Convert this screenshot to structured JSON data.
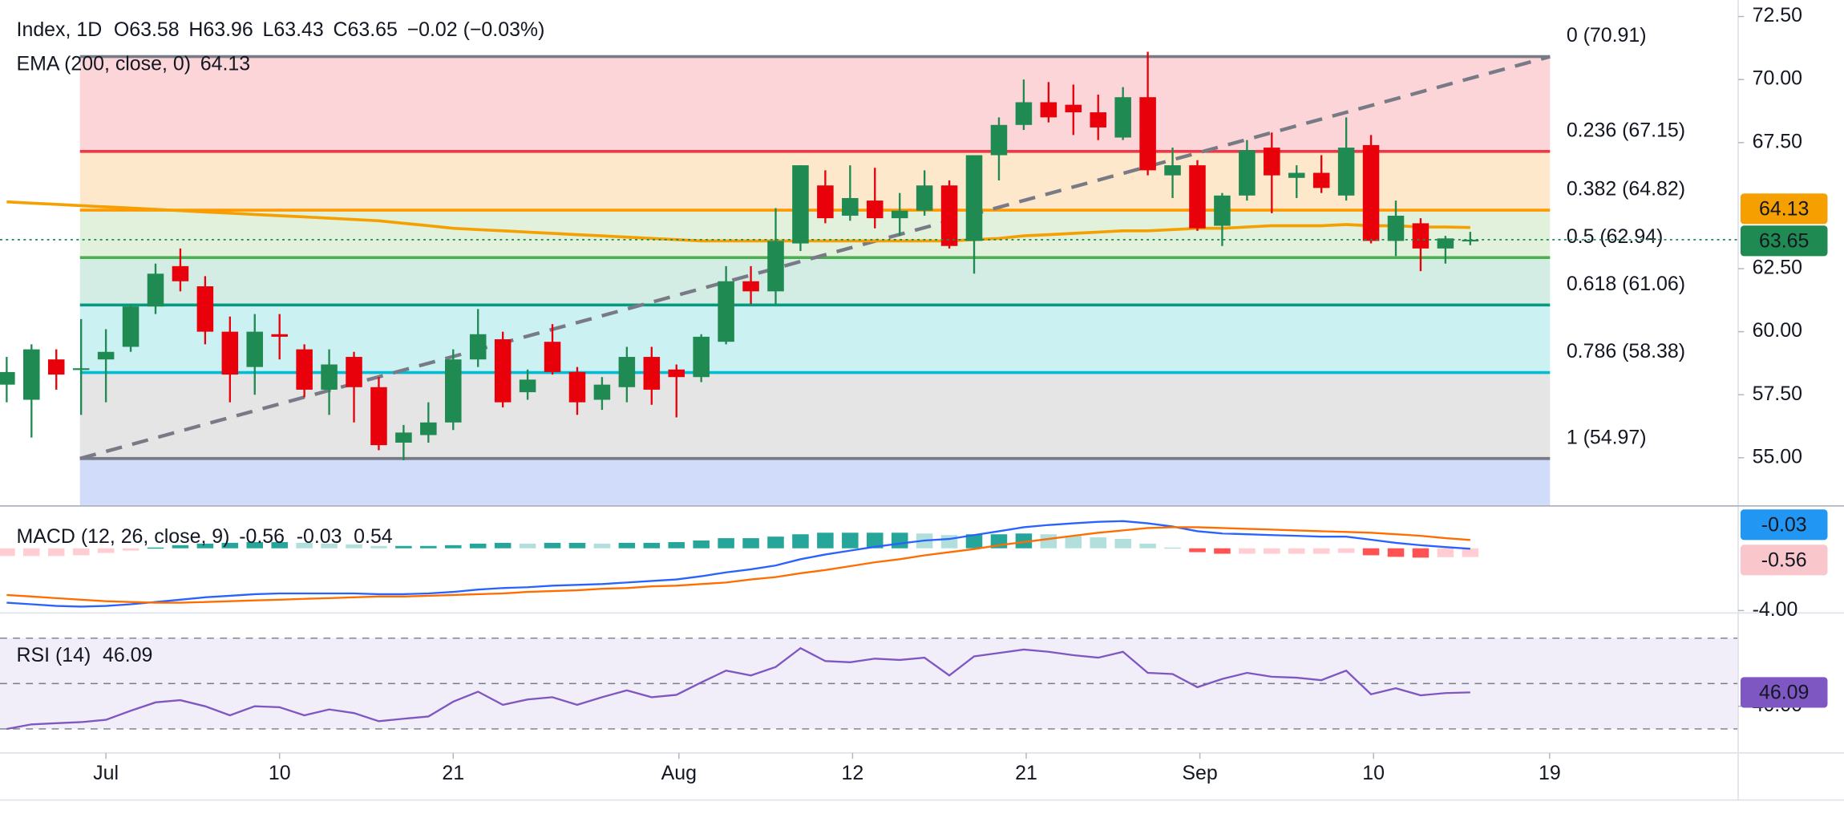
{
  "header": {
    "symbol": "Index, 1D",
    "ohlc": [
      {
        "key": "O",
        "value": 63.58
      },
      {
        "key": "H",
        "value": 63.96
      },
      {
        "key": "L",
        "value": 63.43
      },
      {
        "key": "C",
        "value": 63.65
      }
    ],
    "change": "−0.02 (−0.03%)"
  },
  "chart_data": [
    {
      "type": "candlestick",
      "up_color": "#1f8a52",
      "down_color": "#e8000b",
      "xlim": [
        -0.27,
        69.8
      ],
      "xticks": [
        {
          "value": 4,
          "label": "Jul"
        },
        {
          "value": 11,
          "label": "10"
        },
        {
          "value": 18,
          "label": "21"
        },
        {
          "value": 27.1,
          "label": "Aug"
        },
        {
          "value": 34.1,
          "label": "12"
        },
        {
          "value": 41.1,
          "label": "21"
        },
        {
          "value": 48.1,
          "label": "Sep"
        },
        {
          "value": 55.1,
          "label": "10"
        },
        {
          "value": 62.2,
          "label": "19"
        }
      ],
      "ylim": [
        53.09,
        73.15
      ],
      "yticks": [
        {
          "value": 72.5,
          "label": "72.50"
        },
        {
          "value": 70,
          "label": "70.00"
        },
        {
          "value": 67.5,
          "label": "67.50"
        },
        {
          "value": 62.5,
          "label": "62.50"
        },
        {
          "value": 60,
          "label": "60.00"
        },
        {
          "value": 57.5,
          "label": "57.50"
        },
        {
          "value": 55,
          "label": "55.00"
        }
      ],
      "open": [
        57.9,
        57.3,
        58.9,
        58.5,
        58.9,
        59.4,
        61.0,
        62.6,
        61.8,
        60.0,
        58.6,
        59.9,
        59.3,
        57.7,
        59.0,
        57.8,
        55.6,
        55.9,
        56.4,
        58.9,
        59.7,
        57.6,
        59.6,
        58.4,
        57.3,
        57.8,
        59.0,
        58.5,
        58.2,
        59.6,
        62.0,
        61.6,
        63.5,
        65.8,
        64.6,
        65.2,
        64.5,
        64.8,
        65.8,
        63.6,
        67.0,
        68.2,
        69.1,
        69.0,
        68.7,
        67.7,
        69.3,
        66.2,
        66.6,
        64.2,
        65.4,
        67.3,
        66.1,
        66.3,
        65.4,
        67.4,
        63.6,
        64.3,
        63.3,
        63.58
      ],
      "high": [
        59.0,
        59.5,
        59.3,
        60.5,
        60.1,
        61.1,
        62.7,
        63.3,
        62.2,
        60.6,
        60.7,
        60.7,
        59.5,
        59.3,
        59.2,
        58.2,
        56.3,
        57.2,
        59.3,
        60.9,
        60.0,
        58.5,
        60.3,
        58.6,
        58.2,
        59.4,
        59.4,
        58.7,
        59.9,
        62.6,
        62.6,
        64.9,
        66.6,
        66.4,
        66.6,
        66.5,
        65.5,
        66.4,
        66.0,
        67.0,
        68.5,
        70.0,
        69.9,
        69.8,
        69.4,
        69.7,
        71.1,
        67.3,
        66.8,
        65.5,
        67.6,
        67.9,
        66.6,
        67.0,
        68.5,
        67.8,
        65.2,
        64.5,
        63.8,
        63.96
      ],
      "low": [
        57.2,
        55.8,
        57.7,
        56.7,
        57.2,
        59.2,
        60.7,
        61.6,
        59.5,
        57.2,
        57.5,
        58.9,
        57.4,
        56.7,
        56.4,
        55.3,
        54.9,
        55.6,
        56.1,
        58.6,
        57.0,
        57.3,
        58.3,
        56.7,
        56.9,
        57.2,
        57.1,
        56.6,
        58.0,
        59.5,
        61.1,
        61.1,
        63.2,
        64.3,
        64.4,
        64.1,
        63.8,
        64.6,
        63.3,
        62.3,
        66.0,
        68.0,
        68.3,
        67.8,
        67.6,
        67.6,
        66.2,
        65.3,
        64.0,
        63.4,
        65.2,
        64.7,
        65.3,
        65.5,
        65.2,
        63.5,
        63.0,
        62.4,
        62.7,
        63.43
      ],
      "close": [
        58.4,
        59.3,
        58.3,
        58.55,
        59.2,
        61.0,
        62.3,
        62.0,
        60.0,
        58.3,
        60.0,
        59.8,
        57.7,
        58.7,
        57.8,
        55.5,
        56.0,
        56.4,
        58.9,
        59.9,
        57.2,
        58.1,
        58.4,
        57.2,
        57.9,
        59.0,
        57.7,
        58.2,
        59.8,
        62.0,
        61.6,
        63.6,
        66.6,
        64.5,
        65.3,
        64.5,
        64.8,
        65.8,
        63.4,
        67.0,
        68.2,
        69.1,
        68.5,
        68.7,
        68.1,
        69.3,
        66.4,
        66.6,
        64.1,
        65.4,
        67.2,
        66.2,
        66.3,
        65.7,
        67.3,
        63.6,
        64.6,
        63.3,
        63.7,
        63.65
      ],
      "ema": {
        "name": "EMA (200, close, 0)",
        "color": "#f5a000",
        "values": [
          65.15,
          65.1,
          65.05,
          65.0,
          64.95,
          64.9,
          64.85,
          64.8,
          64.75,
          64.7,
          64.65,
          64.6,
          64.55,
          64.5,
          64.45,
          64.4,
          64.3,
          64.2,
          64.1,
          64.05,
          64.0,
          63.95,
          63.9,
          63.85,
          63.8,
          63.75,
          63.7,
          63.65,
          63.6,
          63.6,
          63.6,
          63.6,
          63.6,
          63.6,
          63.6,
          63.6,
          63.6,
          63.6,
          63.6,
          63.65,
          63.7,
          63.8,
          63.85,
          63.9,
          63.95,
          64.0,
          64.0,
          64.05,
          64.1,
          64.1,
          64.15,
          64.2,
          64.2,
          64.2,
          64.25,
          64.2,
          64.2,
          64.15,
          64.15,
          64.13
        ]
      },
      "fib_levels": [
        {
          "label": "0 (70.91)",
          "value": 70.91,
          "color": "#787b86",
          "fill": "#fbd5d7"
        },
        {
          "label": "0.236 (67.15)",
          "value": 67.15,
          "color": "#f23645",
          "fill": "#fde8cb"
        },
        {
          "label": "0.382 (64.82)",
          "value": 64.82,
          "color": "#ff9800",
          "fill": "#e2f1dc"
        },
        {
          "label": "0.5 (62.94)",
          "value": 62.94,
          "color": "#4caf50",
          "fill": "#d3ece4"
        },
        {
          "label": "0.618 (61.06)",
          "value": 61.06,
          "color": "#089981",
          "fill": "#cbf1f2"
        },
        {
          "label": "0.786 (58.38)",
          "value": 58.38,
          "color": "#00bcd4",
          "fill": "#e5e5e5"
        },
        {
          "label": "1 (54.97)",
          "value": 54.97,
          "color": "#787b86",
          "fill": "#d1dcfb"
        }
      ]
    },
    {
      "type": "macd",
      "title": "MACD (12, 26, close, 9)",
      "ylim": [
        -4.08,
        2.57
      ],
      "yticks": [
        {
          "value": -4,
          "label": "-4.00"
        }
      ],
      "macd": {
        "color": "#2962ff",
        "values": [
          -3.5,
          -3.6,
          -3.7,
          -3.75,
          -3.7,
          -3.6,
          -3.45,
          -3.3,
          -3.15,
          -3.05,
          -2.95,
          -2.9,
          -2.9,
          -2.9,
          -2.9,
          -2.95,
          -2.95,
          -2.9,
          -2.8,
          -2.65,
          -2.55,
          -2.5,
          -2.4,
          -2.35,
          -2.3,
          -2.2,
          -2.1,
          -2.0,
          -1.8,
          -1.55,
          -1.35,
          -1.1,
          -0.7,
          -0.4,
          -0.15,
          0.1,
          0.3,
          0.5,
          0.6,
          0.85,
          1.1,
          1.35,
          1.5,
          1.6,
          1.7,
          1.75,
          1.6,
          1.4,
          1.1,
          0.95,
          0.9,
          0.85,
          0.8,
          0.75,
          0.75,
          0.55,
          0.35,
          0.2,
          0.08,
          -0.03
        ]
      },
      "signal": {
        "color": "#ff6d00",
        "values": [
          -3.0,
          -3.1,
          -3.2,
          -3.3,
          -3.4,
          -3.45,
          -3.5,
          -3.5,
          -3.45,
          -3.4,
          -3.35,
          -3.3,
          -3.25,
          -3.2,
          -3.15,
          -3.1,
          -3.1,
          -3.05,
          -3.0,
          -2.95,
          -2.9,
          -2.8,
          -2.75,
          -2.7,
          -2.6,
          -2.55,
          -2.45,
          -2.4,
          -2.3,
          -2.2,
          -2.0,
          -1.85,
          -1.6,
          -1.4,
          -1.15,
          -0.9,
          -0.7,
          -0.45,
          -0.25,
          -0.05,
          0.2,
          0.4,
          0.6,
          0.8,
          1.0,
          1.15,
          1.3,
          1.35,
          1.35,
          1.3,
          1.25,
          1.2,
          1.15,
          1.1,
          1.05,
          1.0,
          0.9,
          0.8,
          0.65,
          0.54
        ]
      },
      "histogram": {
        "color": "#f8c6cb",
        "values": [
          -0.5,
          -0.5,
          -0.5,
          -0.45,
          -0.3,
          -0.15,
          0.05,
          0.2,
          0.3,
          0.35,
          0.4,
          0.4,
          0.35,
          0.3,
          0.25,
          0.15,
          0.15,
          0.15,
          0.2,
          0.3,
          0.35,
          0.3,
          0.35,
          0.35,
          0.3,
          0.35,
          0.35,
          0.4,
          0.5,
          0.65,
          0.65,
          0.75,
          0.9,
          1.0,
          1.0,
          1.0,
          1.0,
          0.95,
          0.85,
          0.9,
          0.9,
          0.95,
          0.9,
          0.8,
          0.7,
          0.6,
          0.3,
          0.05,
          -0.25,
          -0.35,
          -0.35,
          -0.35,
          -0.35,
          -0.35,
          -0.3,
          -0.45,
          -0.55,
          -0.6,
          -0.57,
          -0.56
        ]
      }
    },
    {
      "type": "rsi",
      "title": "RSI (14)",
      "color": "#7e57c2",
      "ylim": [
        19.4,
        80.6
      ],
      "yticks": [
        {
          "value": 40,
          "label": "40.00"
        }
      ],
      "levels": [
        70,
        50,
        30
      ],
      "values": [
        30,
        32,
        32.5,
        33,
        34,
        38,
        41.7,
        42.7,
        40,
        36,
        40,
        39.6,
        36,
        38.6,
        37,
        33.4,
        34.5,
        35.5,
        42,
        46.4,
        40.6,
        43,
        44,
        40.6,
        44,
        47,
        44,
        45,
        50.5,
        55.7,
        53.6,
        57.3,
        65.6,
        59.9,
        59.4,
        61,
        60.4,
        61.4,
        53.6,
        62,
        63.5,
        65,
        64,
        62.5,
        61.4,
        64,
        54.7,
        54.2,
        48.4,
        52,
        54.7,
        53,
        52.6,
        51.5,
        55.7,
        45.3,
        47.9,
        44.8,
        45.8,
        46.09
      ]
    }
  ]
}
